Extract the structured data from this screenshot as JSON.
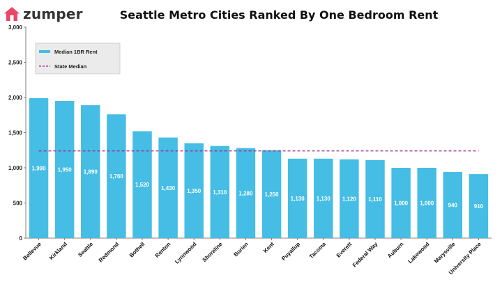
{
  "brand": {
    "name": "zumper",
    "logo_color": "#e9476a"
  },
  "chart_data": {
    "type": "bar",
    "title": "Seattle Metro Cities Ranked By One Bedroom Rent",
    "xlabel": "",
    "ylabel": "",
    "ylim": [
      0,
      3000
    ],
    "yticks": [
      "0",
      "500",
      "1,000",
      "1,500",
      "2,000",
      "2,500",
      "3,000"
    ],
    "ytick_values": [
      0,
      500,
      1000,
      1500,
      2000,
      2500,
      3000
    ],
    "grid": false,
    "legend_position": "top-left",
    "categories": [
      "Bellevue",
      "Kirkland",
      "Seattle",
      "Redmond",
      "Bothell",
      "Renton",
      "Lynnwood",
      "Shoreline",
      "Burien",
      "Kent",
      "Puyallup",
      "Tacoma",
      "Everett",
      "Federal Way",
      "Auburn",
      "Lakewood",
      "Marysville",
      "University Place"
    ],
    "series": [
      {
        "name": "Median 1BR Rent",
        "kind": "bar",
        "color": "#45bde4",
        "values": [
          1990,
          1950,
          1890,
          1760,
          1520,
          1430,
          1350,
          1310,
          1280,
          1250,
          1130,
          1130,
          1120,
          1110,
          1000,
          1000,
          940,
          910
        ],
        "labels": [
          "1,990",
          "1,950",
          "1,890",
          "1,760",
          "1,520",
          "1,430",
          "1,350",
          "1,310",
          "1,280",
          "1,250",
          "1,130",
          "1,130",
          "1,120",
          "1,110",
          "1,000",
          "1,000",
          "940",
          "910"
        ]
      },
      {
        "name": "State Median",
        "kind": "dashed-line",
        "color": "#a0278f",
        "value": 1240
      }
    ]
  }
}
